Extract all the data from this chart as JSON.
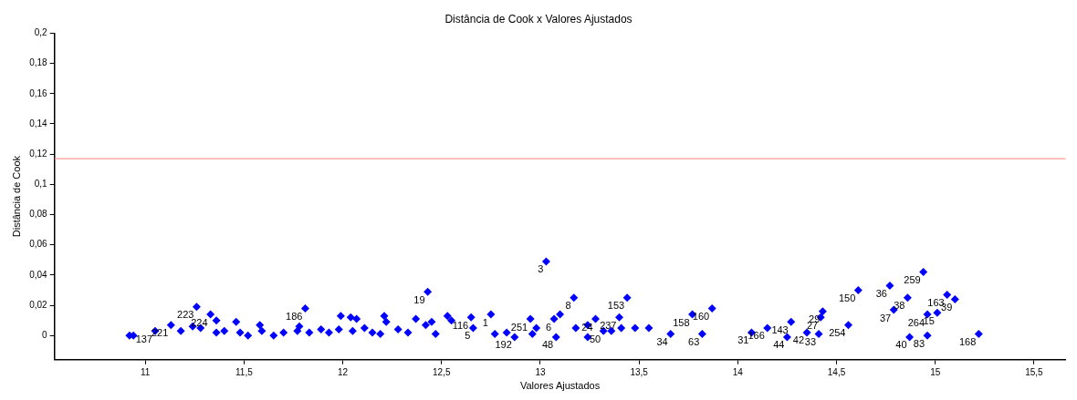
{
  "chart_data": {
    "type": "scatter",
    "title": "Distância de Cook x Valores Ajustados",
    "xlabel": "Valores Ajustados",
    "ylabel": "Distância de Cook",
    "xlim": [
      10.54,
      15.66
    ],
    "ylim": [
      -0.016,
      0.2
    ],
    "xticks": [
      11,
      {
        "value": 11.5,
        "label": "11,5"
      },
      12,
      {
        "value": 12.5,
        "label": "12,5"
      },
      13,
      {
        "value": 13.5,
        "label": "13,5"
      },
      14,
      {
        "value": 14.5,
        "label": "14,5"
      },
      15,
      {
        "value": 15.5,
        "label": "15,5"
      }
    ],
    "yticks": [
      0,
      {
        "value": 0.02,
        "label": "0,02"
      },
      {
        "value": 0.04,
        "label": "0,04"
      },
      {
        "value": 0.06,
        "label": "0,06"
      },
      {
        "value": 0.08,
        "label": "0,08"
      },
      {
        "value": 0.1,
        "label": "0,1"
      },
      {
        "value": 0.12,
        "label": "0,12"
      },
      {
        "value": 0.14,
        "label": "0,14"
      },
      {
        "value": 0.16,
        "label": "0,16"
      },
      {
        "value": 0.18,
        "label": "0,18"
      },
      {
        "value": 0.2,
        "label": "0,2"
      }
    ],
    "grid": false,
    "legend": false,
    "marker": "diamond",
    "series": [
      {
        "color": "#0000ff",
        "x": [
          10.92,
          10.94,
          11.05,
          11.13,
          11.18,
          11.26,
          11.24,
          11.28,
          11.33,
          11.36,
          11.36,
          11.4,
          11.46,
          11.48,
          11.52,
          11.58,
          11.59,
          11.65,
          11.7,
          11.77,
          11.78,
          11.81,
          11.83,
          11.89,
          11.93,
          11.99,
          11.98,
          12.04,
          12.07,
          12.05,
          12.11,
          12.15,
          12.21,
          12.22,
          12.19,
          12.28,
          12.33,
          12.37,
          12.42,
          12.43,
          12.45,
          12.47,
          12.53,
          12.55,
          12.65,
          12.66,
          12.75,
          12.77,
          12.83,
          12.87,
          12.95,
          12.98,
          12.96,
          13.03,
          13.07,
          13.1,
          13.08,
          13.17,
          13.18,
          13.24,
          13.24,
          13.28,
          13.32,
          13.36,
          13.4,
          13.41,
          13.44,
          13.48,
          13.55,
          13.66,
          13.77,
          13.82,
          13.87,
          14.07,
          14.15,
          14.25,
          14.27,
          14.35,
          14.41,
          14.42,
          14.43,
          14.56,
          14.61,
          14.77,
          14.79,
          14.86,
          14.87,
          14.94,
          14.96,
          14.96,
          15.01,
          15.06,
          15.1,
          15.22
        ],
        "values": [
          0.0,
          0.0,
          0.003,
          0.007,
          0.003,
          0.019,
          0.006,
          0.005,
          0.014,
          0.01,
          0.002,
          0.003,
          0.009,
          0.002,
          0.0,
          0.007,
          0.003,
          0.0,
          0.002,
          0.003,
          0.006,
          0.018,
          0.002,
          0.004,
          0.002,
          0.013,
          0.004,
          0.012,
          0.011,
          0.003,
          0.005,
          0.002,
          0.013,
          0.009,
          0.001,
          0.004,
          0.002,
          0.011,
          0.007,
          0.029,
          0.009,
          0.001,
          0.013,
          0.01,
          0.012,
          0.005,
          0.014,
          0.001,
          0.002,
          -0.001,
          0.011,
          0.005,
          0.001,
          0.049,
          0.011,
          0.014,
          -0.001,
          0.025,
          0.005,
          0.007,
          -0.001,
          0.011,
          0.003,
          0.003,
          0.012,
          0.005,
          0.025,
          0.005,
          0.005,
          0.001,
          0.014,
          0.001,
          0.018,
          0.002,
          0.005,
          -0.001,
          0.009,
          0.002,
          0.001,
          0.012,
          0.016,
          0.007,
          0.03,
          0.033,
          0.017,
          0.025,
          -0.001,
          0.042,
          0.014,
          0.0,
          0.015,
          0.027,
          0.024,
          0.001
        ]
      }
    ],
    "ref_lines": [
      {
        "axis": "y",
        "value": 0.117,
        "color": "#ff8080"
      }
    ],
    "annotations": [
      {
        "text": "3",
        "x": 13.03,
        "y": 0.049
      },
      {
        "text": "19",
        "x": 12.43,
        "y": 0.029
      },
      {
        "text": "8",
        "x": 13.17,
        "y": 0.025
      },
      {
        "text": "153",
        "x": 13.44,
        "y": 0.025
      },
      {
        "text": "160",
        "x": 13.87,
        "y": 0.018
      },
      {
        "text": "158",
        "x": 13.77,
        "y": 0.014
      },
      {
        "text": "63",
        "x": 13.82,
        "y": 0.001
      },
      {
        "text": "34",
        "x": 13.66,
        "y": 0.001
      },
      {
        "text": "31",
        "x": 14.07,
        "y": 0.002
      },
      {
        "text": "166",
        "x": 14.15,
        "y": 0.005
      },
      {
        "text": "143",
        "x": 14.27,
        "y": 0.009
      },
      {
        "text": "44",
        "x": 14.25,
        "y": -0.001
      },
      {
        "text": "42",
        "x": 14.35,
        "y": 0.002
      },
      {
        "text": "33",
        "x": 14.41,
        "y": 0.001
      },
      {
        "text": "27",
        "x": 14.42,
        "y": 0.012
      },
      {
        "text": "29",
        "x": 14.43,
        "y": 0.016
      },
      {
        "text": "254",
        "x": 14.56,
        "y": 0.007
      },
      {
        "text": "150",
        "x": 14.61,
        "y": 0.03
      },
      {
        "text": "36",
        "x": 14.77,
        "y": 0.033
      },
      {
        "text": "37",
        "x": 14.79,
        "y": 0.017
      },
      {
        "text": "38",
        "x": 14.86,
        "y": 0.025
      },
      {
        "text": "259",
        "x": 14.94,
        "y": 0.042
      },
      {
        "text": "40",
        "x": 14.87,
        "y": -0.001
      },
      {
        "text": "83",
        "x": 14.96,
        "y": 0.0
      },
      {
        "text": "264",
        "x": 14.96,
        "y": 0.014
      },
      {
        "text": "15",
        "x": 15.01,
        "y": 0.015
      },
      {
        "text": "163",
        "x": 15.06,
        "y": 0.027
      },
      {
        "text": "39",
        "x": 15.1,
        "y": 0.024
      },
      {
        "text": "168",
        "x": 15.22,
        "y": 0.001
      },
      {
        "text": "1",
        "x": 12.75,
        "y": 0.014
      },
      {
        "text": "116",
        "x": 12.65,
        "y": 0.012
      },
      {
        "text": "5",
        "x": 12.66,
        "y": 0.005
      },
      {
        "text": "251",
        "x": 12.95,
        "y": 0.011
      },
      {
        "text": "6",
        "x": 13.07,
        "y": 0.011
      },
      {
        "text": "48",
        "x": 13.08,
        "y": -0.001
      },
      {
        "text": "192",
        "x": 12.87,
        "y": -0.001
      },
      {
        "text": "24",
        "x": 13.28,
        "y": 0.011
      },
      {
        "text": "237",
        "x": 13.4,
        "y": 0.012
      },
      {
        "text": "50",
        "x": 13.32,
        "y": 0.003
      },
      {
        "text": "186",
        "x": 11.81,
        "y": 0.018
      },
      {
        "text": "223",
        "x": 11.26,
        "y": 0.019
      },
      {
        "text": "224",
        "x": 11.33,
        "y": 0.014
      },
      {
        "text": "221",
        "x": 11.13,
        "y": 0.007
      },
      {
        "text": "137",
        "x": 11.05,
        "y": 0.003
      }
    ]
  }
}
